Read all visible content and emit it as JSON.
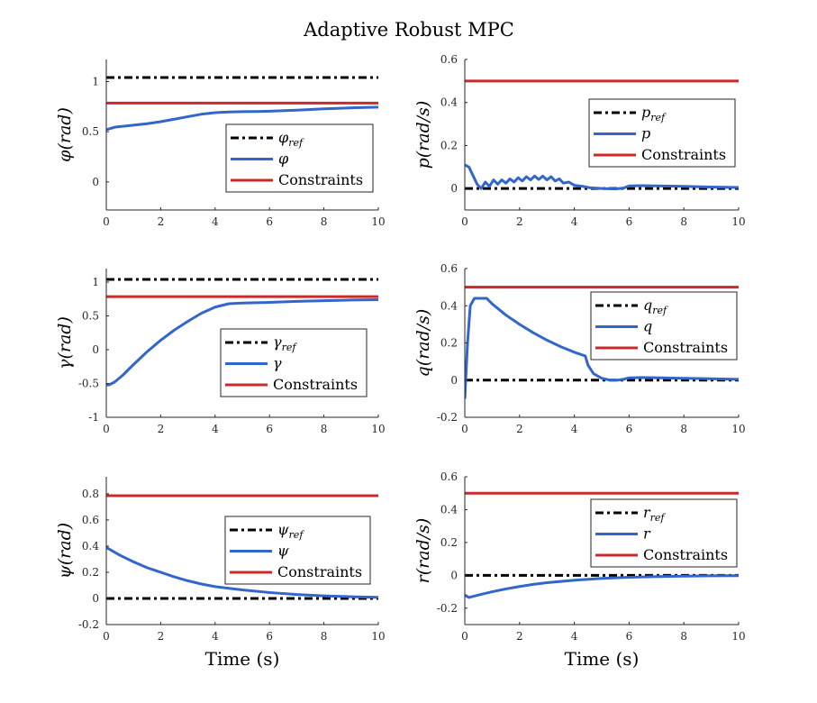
{
  "title": "Adaptive Robust MPC",
  "colors": {
    "reference": "#000000",
    "state": "#3366cc",
    "constraint": "#cc2a2a",
    "axis": "#262626"
  },
  "chart_data": [
    {
      "type": "line",
      "id": "phi",
      "ylabel_sym": "φ",
      "ylabel_unit": "(rad)",
      "xlabel": "",
      "xlim": [
        0,
        10
      ],
      "ylim": [
        -0.28,
        1.22
      ],
      "xticks": [
        0,
        2,
        4,
        6,
        8,
        10
      ],
      "yticks": [
        0,
        0.5,
        1
      ],
      "ytick_labels": [
        "0",
        "0.5",
        "1"
      ],
      "legend": {
        "position": "lower-right",
        "entries": [
          {
            "base": "φ",
            "sub": "ref",
            "kind": "reference"
          },
          {
            "base": "φ",
            "sub": "",
            "kind": "state"
          },
          {
            "base": "Constraints",
            "sub": "",
            "kind": "constraint"
          }
        ]
      },
      "series": [
        {
          "name": "φref",
          "kind": "reference",
          "x": [
            0,
            10
          ],
          "y": [
            1.04,
            1.04
          ]
        },
        {
          "name": "Constraints",
          "kind": "constraint",
          "x": [
            0,
            10
          ],
          "y": [
            0.785,
            0.785
          ]
        },
        {
          "name": "φ",
          "kind": "state",
          "x": [
            0,
            0.3,
            0.8,
            1.5,
            2,
            2.5,
            3,
            3.5,
            4,
            4.5,
            5,
            5.5,
            6,
            7,
            8,
            9,
            10
          ],
          "y": [
            0.52,
            0.545,
            0.56,
            0.58,
            0.6,
            0.625,
            0.65,
            0.675,
            0.69,
            0.697,
            0.7,
            0.701,
            0.705,
            0.715,
            0.728,
            0.738,
            0.745
          ]
        }
      ]
    },
    {
      "type": "line",
      "id": "p",
      "ylabel_sym": "p",
      "ylabel_unit": "(rad/s)",
      "xlabel": "",
      "xlim": [
        0,
        10
      ],
      "ylim": [
        -0.1,
        0.6
      ],
      "xticks": [
        0,
        2,
        4,
        6,
        8,
        10
      ],
      "yticks": [
        0,
        0.2,
        0.4,
        0.6
      ],
      "ytick_labels": [
        "0",
        "0.2",
        "0.4",
        "0.6"
      ],
      "legend": {
        "position": "right",
        "entries": [
          {
            "base": "p",
            "sub": "ref",
            "kind": "reference"
          },
          {
            "base": "p",
            "sub": "",
            "kind": "state"
          },
          {
            "base": "Constraints",
            "sub": "",
            "kind": "constraint"
          }
        ]
      },
      "series": [
        {
          "name": "pref",
          "kind": "reference",
          "x": [
            0,
            10
          ],
          "y": [
            0,
            0
          ]
        },
        {
          "name": "Constraints",
          "kind": "constraint",
          "x": [
            0,
            10
          ],
          "y": [
            0.5,
            0.5
          ]
        },
        {
          "name": "p",
          "kind": "state",
          "x": [
            0,
            0.15,
            0.3,
            0.45,
            0.6,
            0.75,
            0.9,
            1.05,
            1.2,
            1.35,
            1.5,
            1.65,
            1.8,
            1.95,
            2.1,
            2.25,
            2.4,
            2.55,
            2.7,
            2.85,
            3,
            3.15,
            3.3,
            3.45,
            3.6,
            3.8,
            4,
            4.3,
            4.6,
            5,
            5.5,
            5.8,
            6,
            6.5,
            7,
            8,
            9,
            10
          ],
          "y": [
            0.11,
            0.1,
            0.06,
            0.02,
            0.0,
            0.03,
            0.01,
            0.04,
            0.02,
            0.04,
            0.025,
            0.045,
            0.03,
            0.05,
            0.035,
            0.055,
            0.04,
            0.058,
            0.042,
            0.058,
            0.04,
            0.055,
            0.035,
            0.045,
            0.025,
            0.03,
            0.015,
            0.01,
            0.003,
            0.0,
            -0.002,
            0.002,
            0.012,
            0.013,
            0.012,
            0.01,
            0.007,
            0.005
          ]
        }
      ]
    },
    {
      "type": "line",
      "id": "gamma",
      "ylabel_sym": "γ",
      "ylabel_unit": "(rad)",
      "xlabel": "",
      "xlim": [
        0,
        10
      ],
      "ylim": [
        -1,
        1.2
      ],
      "xticks": [
        0,
        2,
        4,
        6,
        8,
        10
      ],
      "yticks": [
        -1,
        -0.5,
        0,
        0.5,
        1
      ],
      "ytick_labels": [
        "-1",
        "-0.5",
        "0",
        "0.5",
        "1"
      ],
      "legend": {
        "position": "lower-right",
        "entries": [
          {
            "base": "γ",
            "sub": "ref",
            "kind": "reference"
          },
          {
            "base": "γ",
            "sub": "",
            "kind": "state"
          },
          {
            "base": "Constraints",
            "sub": "",
            "kind": "constraint"
          }
        ]
      },
      "series": [
        {
          "name": "γref",
          "kind": "reference",
          "x": [
            0,
            10
          ],
          "y": [
            1.04,
            1.04
          ]
        },
        {
          "name": "Constraints",
          "kind": "constraint",
          "x": [
            0,
            10
          ],
          "y": [
            0.785,
            0.785
          ]
        },
        {
          "name": "γ",
          "kind": "state",
          "x": [
            0,
            0.1,
            0.3,
            0.6,
            1,
            1.5,
            2,
            2.5,
            3,
            3.5,
            4,
            4.5,
            5,
            6,
            7,
            8,
            9,
            10
          ],
          "y": [
            -0.52,
            -0.52,
            -0.48,
            -0.38,
            -0.22,
            -0.03,
            0.14,
            0.29,
            0.42,
            0.54,
            0.63,
            0.68,
            0.69,
            0.7,
            0.715,
            0.725,
            0.735,
            0.74
          ]
        }
      ]
    },
    {
      "type": "line",
      "id": "q",
      "ylabel_sym": "q",
      "ylabel_unit": "(rad/s)",
      "xlabel": "",
      "xlim": [
        0,
        10
      ],
      "ylim": [
        -0.2,
        0.6
      ],
      "xticks": [
        0,
        2,
        4,
        6,
        8,
        10
      ],
      "yticks": [
        -0.2,
        0,
        0.2,
        0.4,
        0.6
      ],
      "ytick_labels": [
        "-0.2",
        "0",
        "0.2",
        "0.4",
        "0.6"
      ],
      "legend": {
        "position": "right",
        "entries": [
          {
            "base": "q",
            "sub": "ref",
            "kind": "reference"
          },
          {
            "base": "q",
            "sub": "",
            "kind": "state"
          },
          {
            "base": "Constraints",
            "sub": "",
            "kind": "constraint"
          }
        ]
      },
      "series": [
        {
          "name": "qref",
          "kind": "reference",
          "x": [
            0,
            10
          ],
          "y": [
            0,
            0
          ]
        },
        {
          "name": "Constraints",
          "kind": "constraint",
          "x": [
            0,
            10
          ],
          "y": [
            0.5,
            0.5
          ]
        },
        {
          "name": "q",
          "kind": "state",
          "x": [
            0,
            0.1,
            0.2,
            0.35,
            0.5,
            0.8,
            1,
            1.5,
            2,
            2.5,
            3,
            3.5,
            4,
            4.3,
            4.4,
            4.5,
            4.7,
            5,
            5.3,
            5.6,
            5.8,
            6,
            6.5,
            7,
            8,
            9,
            10
          ],
          "y": [
            -0.1,
            0.2,
            0.4,
            0.44,
            0.44,
            0.44,
            0.41,
            0.35,
            0.3,
            0.255,
            0.215,
            0.18,
            0.15,
            0.135,
            0.13,
            0.08,
            0.035,
            0.01,
            0.0,
            0.0,
            0.005,
            0.012,
            0.014,
            0.013,
            0.01,
            0.007,
            0.004
          ]
        }
      ]
    },
    {
      "type": "line",
      "id": "psi",
      "ylabel_sym": "ψ",
      "ylabel_unit": "(rad)",
      "xlabel": "Time (s)",
      "xlim": [
        0,
        10
      ],
      "ylim": [
        -0.2,
        0.93
      ],
      "xticks": [
        0,
        2,
        4,
        6,
        8,
        10
      ],
      "yticks": [
        -0.2,
        0,
        0.2,
        0.4,
        0.6,
        0.8
      ],
      "ytick_labels": [
        "-0.2",
        "0",
        "0.2",
        "0.4",
        "0.6",
        "0.8"
      ],
      "legend": {
        "position": "right",
        "entries": [
          {
            "base": "ψ",
            "sub": "ref",
            "kind": "reference"
          },
          {
            "base": "ψ",
            "sub": "",
            "kind": "state"
          },
          {
            "base": "Constraints",
            "sub": "",
            "kind": "constraint"
          }
        ]
      },
      "series": [
        {
          "name": "ψref",
          "kind": "reference",
          "x": [
            0,
            10
          ],
          "y": [
            0,
            0
          ]
        },
        {
          "name": "Constraints",
          "kind": "constraint",
          "x": [
            0,
            10
          ],
          "y": [
            0.785,
            0.785
          ]
        },
        {
          "name": "ψ",
          "kind": "state",
          "x": [
            0,
            0.5,
            1,
            1.5,
            2,
            2.5,
            3,
            3.5,
            4,
            5,
            6,
            7,
            8,
            9,
            10
          ],
          "y": [
            0.39,
            0.33,
            0.28,
            0.235,
            0.2,
            0.165,
            0.135,
            0.11,
            0.09,
            0.065,
            0.045,
            0.03,
            0.02,
            0.013,
            0.008
          ]
        }
      ]
    },
    {
      "type": "line",
      "id": "r",
      "ylabel_sym": "r",
      "ylabel_unit": "(rad/s)",
      "xlabel": "Time (s)",
      "xlim": [
        0,
        10
      ],
      "ylim": [
        -0.3,
        0.6
      ],
      "xticks": [
        0,
        2,
        4,
        6,
        8,
        10
      ],
      "yticks": [
        -0.2,
        0,
        0.2,
        0.4,
        0.6
      ],
      "ytick_labels": [
        "-0.2",
        "0",
        "0.2",
        "0.4",
        "0.6"
      ],
      "legend": {
        "position": "right",
        "entries": [
          {
            "base": "r",
            "sub": "ref",
            "kind": "reference"
          },
          {
            "base": "r",
            "sub": "",
            "kind": "state"
          },
          {
            "base": "Constraints",
            "sub": "",
            "kind": "constraint"
          }
        ]
      },
      "series": [
        {
          "name": "rref",
          "kind": "reference",
          "x": [
            0,
            10
          ],
          "y": [
            0,
            0
          ]
        },
        {
          "name": "Constraints",
          "kind": "constraint",
          "x": [
            0,
            10
          ],
          "y": [
            0.5,
            0.5
          ]
        },
        {
          "name": "r",
          "kind": "state",
          "x": [
            0,
            0.15,
            0.5,
            1,
            1.5,
            2,
            2.5,
            3,
            3.5,
            4,
            4.5,
            5,
            6,
            7,
            8,
            9,
            10
          ],
          "y": [
            -0.12,
            -0.135,
            -0.12,
            -0.1,
            -0.083,
            -0.068,
            -0.055,
            -0.045,
            -0.037,
            -0.03,
            -0.024,
            -0.019,
            -0.012,
            -0.008,
            -0.005,
            -0.003,
            -0.002
          ]
        }
      ]
    }
  ]
}
